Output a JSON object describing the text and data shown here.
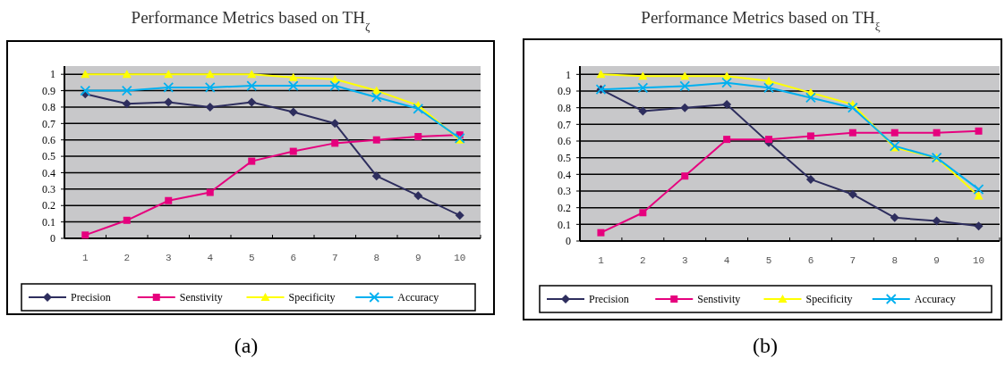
{
  "chart_data": [
    {
      "type": "line",
      "title": "Performance Metrics based on TH$_{ζ}$",
      "categories": [
        "1",
        "2",
        "3",
        "4",
        "5",
        "6",
        "7",
        "8",
        "9",
        "10"
      ],
      "ylim": [
        0,
        1.05
      ],
      "yticks": [
        0,
        0.1,
        0.2,
        0.3,
        0.4,
        0.5,
        0.6,
        0.7,
        0.8,
        0.9,
        1
      ],
      "grid": "y",
      "legend": "bottom",
      "annotations": [
        "(a)"
      ],
      "series": [
        {
          "name": "Precision",
          "color": "#2e2e5e",
          "marker": "diamond",
          "values": [
            0.88,
            0.82,
            0.83,
            0.8,
            0.83,
            0.77,
            0.7,
            0.38,
            0.26,
            0.14
          ]
        },
        {
          "name": "Senstivity",
          "color": "#e6007e",
          "marker": "square",
          "values": [
            0.02,
            0.11,
            0.23,
            0.28,
            0.47,
            0.53,
            0.58,
            0.6,
            0.62,
            0.63
          ]
        },
        {
          "name": "Specificity",
          "color": "#ffff00",
          "marker": "triangle",
          "values": [
            1,
            1,
            1,
            1,
            1,
            0.98,
            0.97,
            0.9,
            0.81,
            0.6
          ]
        },
        {
          "name": "Accuracy",
          "color": "#00b0f0",
          "marker": "cross",
          "values": [
            0.9,
            0.9,
            0.92,
            0.92,
            0.93,
            0.93,
            0.93,
            0.86,
            0.79,
            0.61
          ]
        }
      ]
    },
    {
      "type": "line",
      "title": "Performance Metrics based on TH$_{ξ}$",
      "categories": [
        "1",
        "2",
        "3",
        "4",
        "5",
        "6",
        "7",
        "8",
        "9",
        "10"
      ],
      "ylim": [
        0,
        1.05
      ],
      "yticks": [
        0,
        0.1,
        0.2,
        0.3,
        0.4,
        0.5,
        0.6,
        0.7,
        0.8,
        0.9,
        1
      ],
      "grid": "y",
      "legend": "bottom",
      "annotations": [
        "(b)"
      ],
      "series": [
        {
          "name": "Precision",
          "color": "#2e2e5e",
          "marker": "diamond",
          "values": [
            0.91,
            0.78,
            0.8,
            0.82,
            0.59,
            0.37,
            0.28,
            0.14,
            0.12,
            0.09
          ]
        },
        {
          "name": "Senstivity",
          "color": "#e6007e",
          "marker": "square",
          "values": [
            0.05,
            0.17,
            0.39,
            0.61,
            0.61,
            0.63,
            0.65,
            0.65,
            0.65,
            0.66
          ]
        },
        {
          "name": "Specificity",
          "color": "#ffff00",
          "marker": "triangle",
          "values": [
            1,
            0.99,
            0.99,
            0.99,
            0.96,
            0.89,
            0.82,
            0.56,
            0.5,
            0.27
          ]
        },
        {
          "name": "Accuracy",
          "color": "#00b0f0",
          "marker": "cross",
          "values": [
            0.91,
            0.92,
            0.93,
            0.95,
            0.92,
            0.86,
            0.8,
            0.57,
            0.5,
            0.31
          ]
        }
      ]
    }
  ]
}
